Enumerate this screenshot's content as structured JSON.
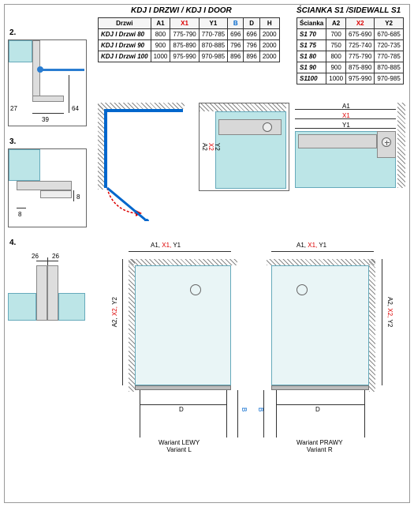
{
  "titles": {
    "door": "KDJ I DRZWI / KDJ I DOOR",
    "sidewall": "ŚCIANKA S1 /SIDEWALL S1"
  },
  "door_table": {
    "headers": [
      "Drzwi",
      "A1",
      "X1",
      "Y1",
      "B",
      "D",
      "H"
    ],
    "header_classes": [
      "",
      "",
      "red",
      "",
      "blue",
      "",
      ""
    ],
    "rows": [
      [
        "KDJ I Drzwi 80",
        "800",
        "775-790",
        "770-785",
        "696",
        "696",
        "2000"
      ],
      [
        "KDJ I Drzwi 90",
        "900",
        "875-890",
        "870-885",
        "796",
        "796",
        "2000"
      ],
      [
        "KDJ I Drzwi 100",
        "1000",
        "975-990",
        "970-985",
        "896",
        "896",
        "2000"
      ]
    ]
  },
  "sidewall_table": {
    "headers": [
      "Ścianka",
      "A2",
      "X2",
      "Y2"
    ],
    "header_classes": [
      "",
      "",
      "red",
      ""
    ],
    "rows": [
      [
        "S1 70",
        "700",
        "675-690",
        "670-685"
      ],
      [
        "S1 75",
        "750",
        "725-740",
        "720-735"
      ],
      [
        "S1 80",
        "800",
        "775-790",
        "770-785"
      ],
      [
        "S1 90",
        "900",
        "875-890",
        "870-885"
      ],
      [
        "S1100",
        "1000",
        "975-990",
        "970-985"
      ]
    ]
  },
  "details": {
    "d2_num": "2.",
    "d2_dims": {
      "a": "27",
      "b": "39",
      "c": "64"
    },
    "d3_num": "3.",
    "d3_dims": {
      "a": "8",
      "b": "8"
    },
    "d4_num": "4.",
    "d4_dims": {
      "a": "26",
      "b": "26"
    }
  },
  "plan_labels": {
    "a1x1y1": [
      "A1,",
      "X1,",
      "Y1"
    ],
    "a2x2y2": [
      "A2,",
      "X2,",
      "Y2"
    ],
    "A1": "A1",
    "X1": "X1",
    "Y1": "Y1",
    "A2": "A2",
    "X2": "X2",
    "Y2": "Y2",
    "D": "D",
    "B": "B"
  },
  "variants": {
    "left_pl": "Wariant LEWY",
    "left_en": "Variant L",
    "right_pl": "Wariant PRAWY",
    "right_en": "Variant R"
  },
  "colors": {
    "red": "#d00000",
    "blue": "#0066cc",
    "glass": "#bce5e7",
    "profile": "#dddddd",
    "wall_hatch": "#888888"
  }
}
